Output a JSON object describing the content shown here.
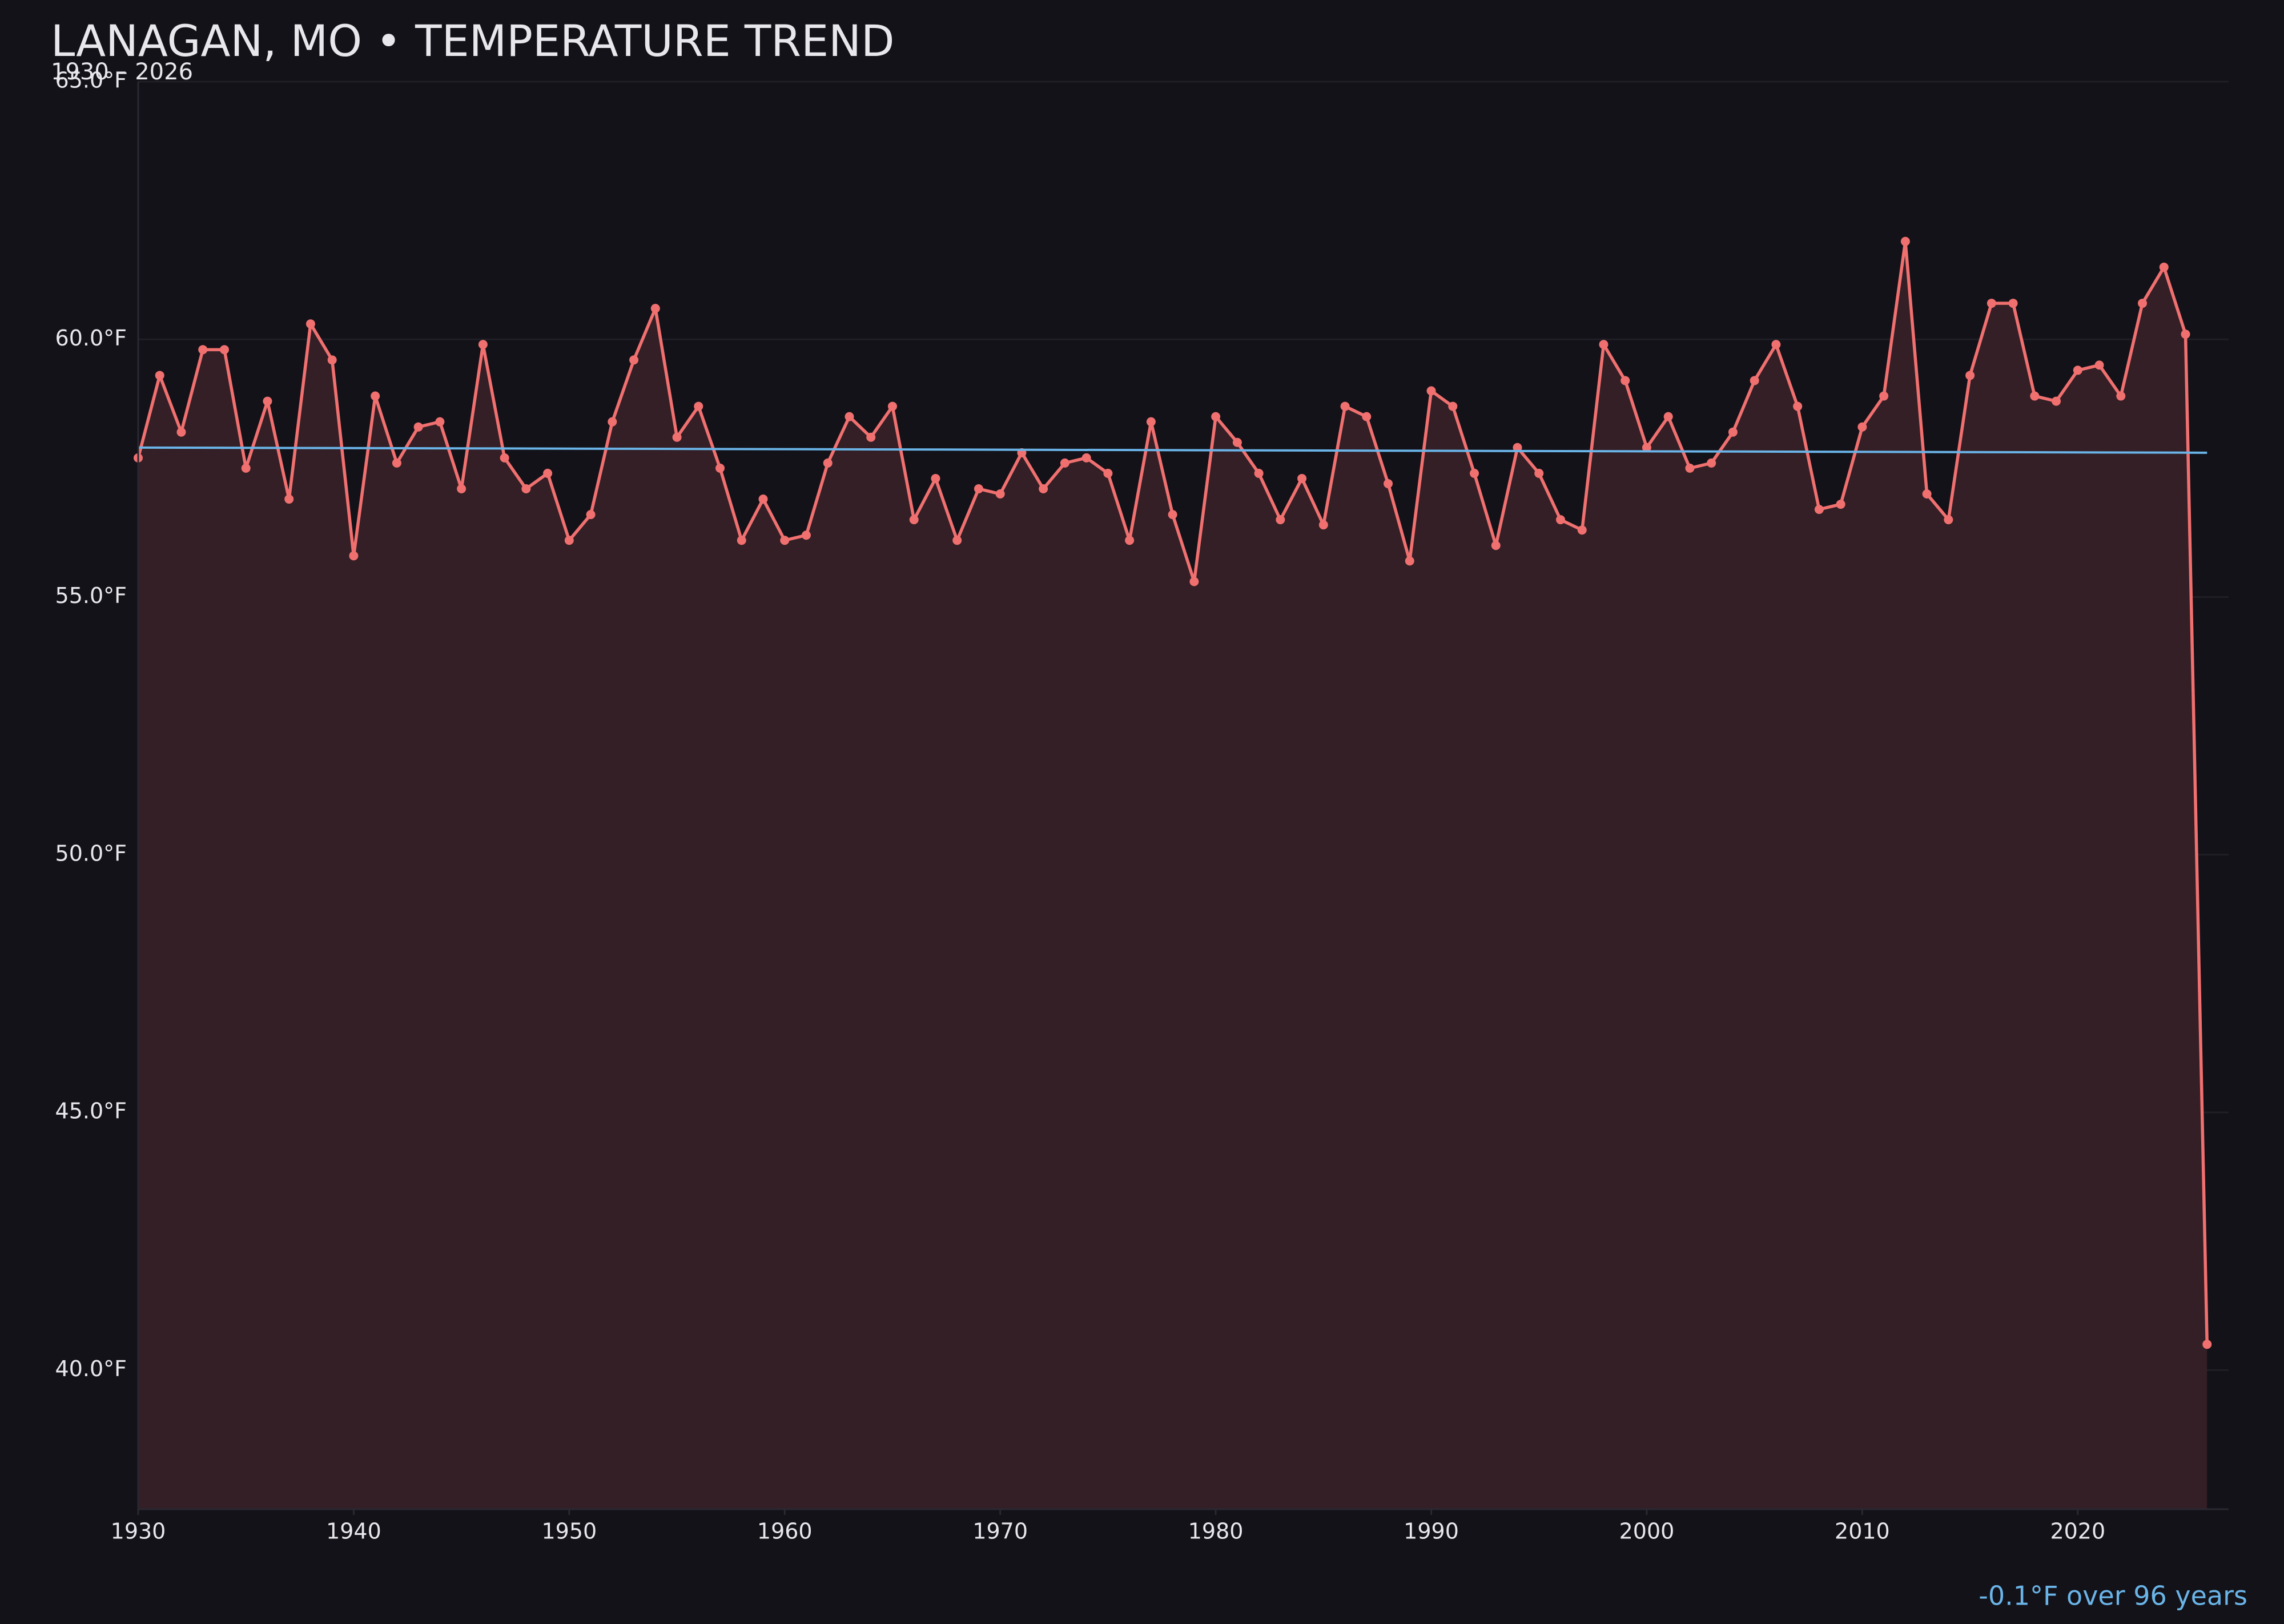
{
  "chart_data": {
    "type": "line",
    "title": "LANAGAN, MO • TEMPERATURE TREND",
    "subtitle": "1930 – 2026",
    "annotation": "-0.1°F over 96 years",
    "x": [
      1930,
      1931,
      1932,
      1933,
      1934,
      1935,
      1936,
      1937,
      1938,
      1939,
      1940,
      1941,
      1942,
      1943,
      1944,
      1945,
      1946,
      1947,
      1948,
      1949,
      1950,
      1951,
      1952,
      1953,
      1954,
      1955,
      1956,
      1957,
      1958,
      1959,
      1960,
      1961,
      1962,
      1963,
      1964,
      1965,
      1966,
      1967,
      1968,
      1969,
      1970,
      1971,
      1972,
      1973,
      1974,
      1975,
      1976,
      1977,
      1978,
      1979,
      1980,
      1981,
      1982,
      1983,
      1984,
      1985,
      1986,
      1987,
      1988,
      1989,
      1990,
      1991,
      1992,
      1993,
      1994,
      1995,
      1996,
      1997,
      1998,
      1999,
      2000,
      2001,
      2002,
      2003,
      2004,
      2005,
      2006,
      2007,
      2008,
      2009,
      2010,
      2011,
      2012,
      2013,
      2014,
      2015,
      2016,
      2017,
      2018,
      2019,
      2020,
      2021,
      2022,
      2023,
      2024,
      2025,
      2026
    ],
    "series": [
      {
        "color": "#f07070",
        "area_color": "#331f25",
        "values": [
          57.7,
          59.3,
          58.2,
          59.8,
          59.8,
          57.5,
          58.8,
          56.9,
          60.3,
          59.6,
          55.8,
          58.9,
          57.6,
          58.3,
          58.4,
          57.1,
          59.9,
          57.7,
          57.1,
          57.4,
          56.1,
          56.6,
          58.4,
          59.6,
          60.6,
          58.1,
          58.7,
          57.5,
          56.1,
          56.9,
          56.1,
          56.2,
          57.6,
          58.5,
          58.1,
          58.7,
          56.5,
          57.3,
          56.1,
          57.1,
          57.0,
          57.8,
          57.1,
          57.6,
          57.7,
          57.4,
          56.1,
          58.4,
          56.6,
          55.3,
          58.5,
          58.0,
          57.4,
          56.5,
          57.3,
          56.4,
          58.7,
          58.5,
          57.2,
          55.7,
          59.0,
          58.7,
          57.4,
          56.0,
          57.9,
          57.4,
          56.5,
          56.3,
          59.9,
          59.2,
          57.9,
          58.5,
          57.5,
          57.6,
          58.2,
          59.2,
          59.9,
          58.7,
          56.7,
          56.8,
          58.3,
          58.9,
          61.9,
          57.0,
          56.5,
          59.3,
          60.7,
          60.7,
          58.9,
          58.8,
          59.4,
          59.5,
          58.9,
          60.7,
          61.4,
          60.1,
          40.5
        ]
      }
    ],
    "trend": {
      "color": "#6ab4e8",
      "x": [
        1930,
        2026
      ],
      "values": [
        57.9,
        57.8
      ]
    },
    "xlim": [
      1930,
      2027
    ],
    "ylim": [
      37.3,
      65
    ],
    "xticks": [
      1930,
      1940,
      1950,
      1960,
      1970,
      1980,
      1990,
      2000,
      2010,
      2020
    ],
    "yticks": [
      {
        "value": 40,
        "label": "40.0°F"
      },
      {
        "value": 45,
        "label": "45.0°F"
      },
      {
        "value": 50,
        "label": "50.0°F"
      },
      {
        "value": 55,
        "label": "55.0°F"
      },
      {
        "value": 60,
        "label": "60.0°F"
      },
      {
        "value": 65,
        "label": "65.0°F"
      }
    ],
    "grid": true
  }
}
